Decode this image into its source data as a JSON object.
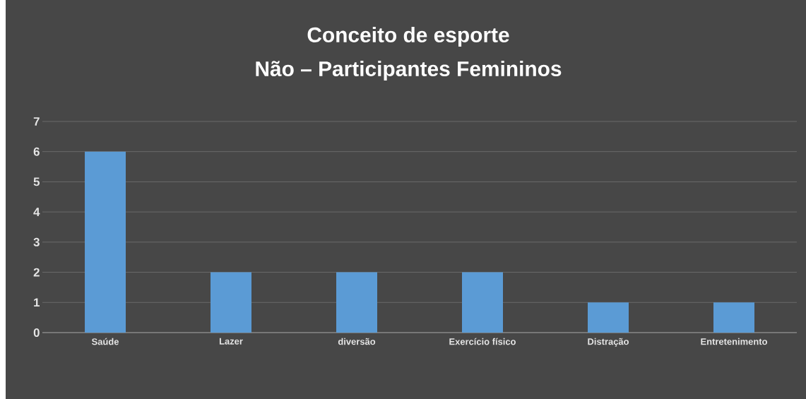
{
  "chart_data": {
    "type": "bar",
    "title": "Conceito de esporte",
    "subtitle": "Não – Participantes Femininos",
    "categories": [
      "Saúde",
      "Lazer",
      "diversão",
      "Exercício físico",
      "Distração",
      "Entretenimento"
    ],
    "values": [
      6,
      2,
      2,
      2,
      1,
      1
    ],
    "color": "#5b9bd5",
    "ylim": [
      0,
      7
    ],
    "yticks": [
      0,
      1,
      2,
      3,
      4,
      5,
      6,
      7
    ],
    "grid": "y"
  }
}
